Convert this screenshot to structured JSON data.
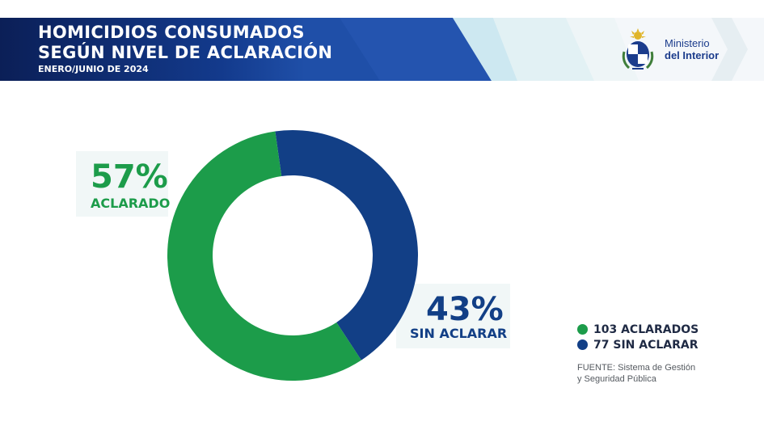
{
  "header": {
    "title_line1": "HOMICIDIOS CONSUMADOS",
    "title_line2": "SEGÚN NIVEL DE ACLARACIÓN",
    "subtitle": "ENERO/JUNIO DE 2024",
    "logo_line1": "Ministerio",
    "logo_line2": "del Interior",
    "logo_icon": "uruguay-coat-of-arms-icon"
  },
  "colors": {
    "green": "#1c9c4a",
    "blue": "#123f86",
    "header_dark": "#0d2462"
  },
  "chart_data": {
    "type": "pie",
    "donut": true,
    "categories": [
      "ACLARADO",
      "SIN ACLARAR"
    ],
    "values": [
      57,
      43
    ],
    "counts": [
      103,
      77
    ],
    "percent_labels": [
      "57%",
      "43%"
    ],
    "colors": [
      "#1c9c4a",
      "#123f86"
    ],
    "legend": [
      "103 ACLARADOS",
      "77 SIN ACLARAR"
    ],
    "legend_position": "bottom-right"
  },
  "source": {
    "line1": "FUENTE: Sistema de Gestión",
    "line2": "y Seguridad Pública"
  }
}
